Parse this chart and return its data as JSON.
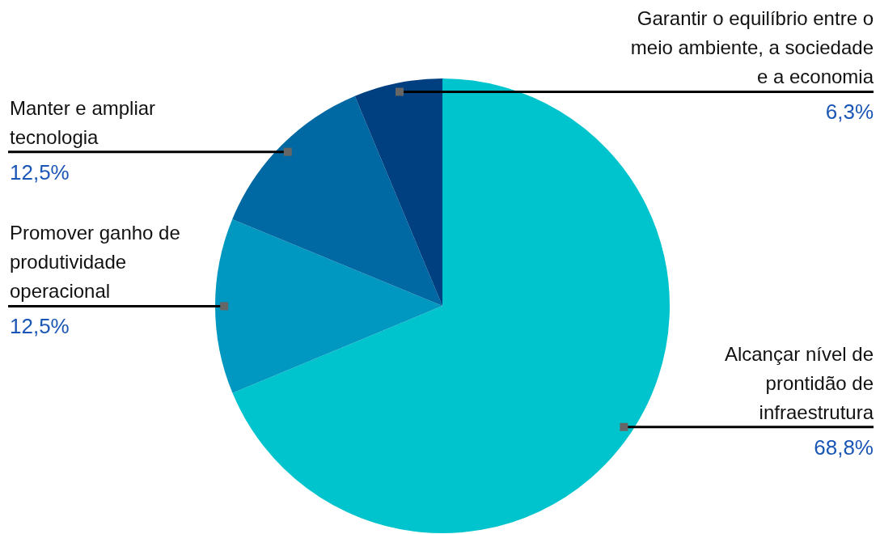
{
  "chart_data": {
    "type": "pie",
    "categories": [
      "Alcançar nível de prontidão de infraestrutura",
      "Promover ganho de produtividade operacional",
      "Manter e ampliar tecnologia",
      "Garantir o equilíbrio entre o meio ambiente, a sociedade e a economia"
    ],
    "values": [
      68.8,
      12.5,
      12.5,
      6.3
    ],
    "colors": [
      "#00c4cd",
      "#0098c0",
      "#0068a3",
      "#003f80"
    ],
    "value_labels": [
      "68,8%",
      "12,5%",
      "12,5%",
      "6,3%"
    ],
    "legend": false
  }
}
